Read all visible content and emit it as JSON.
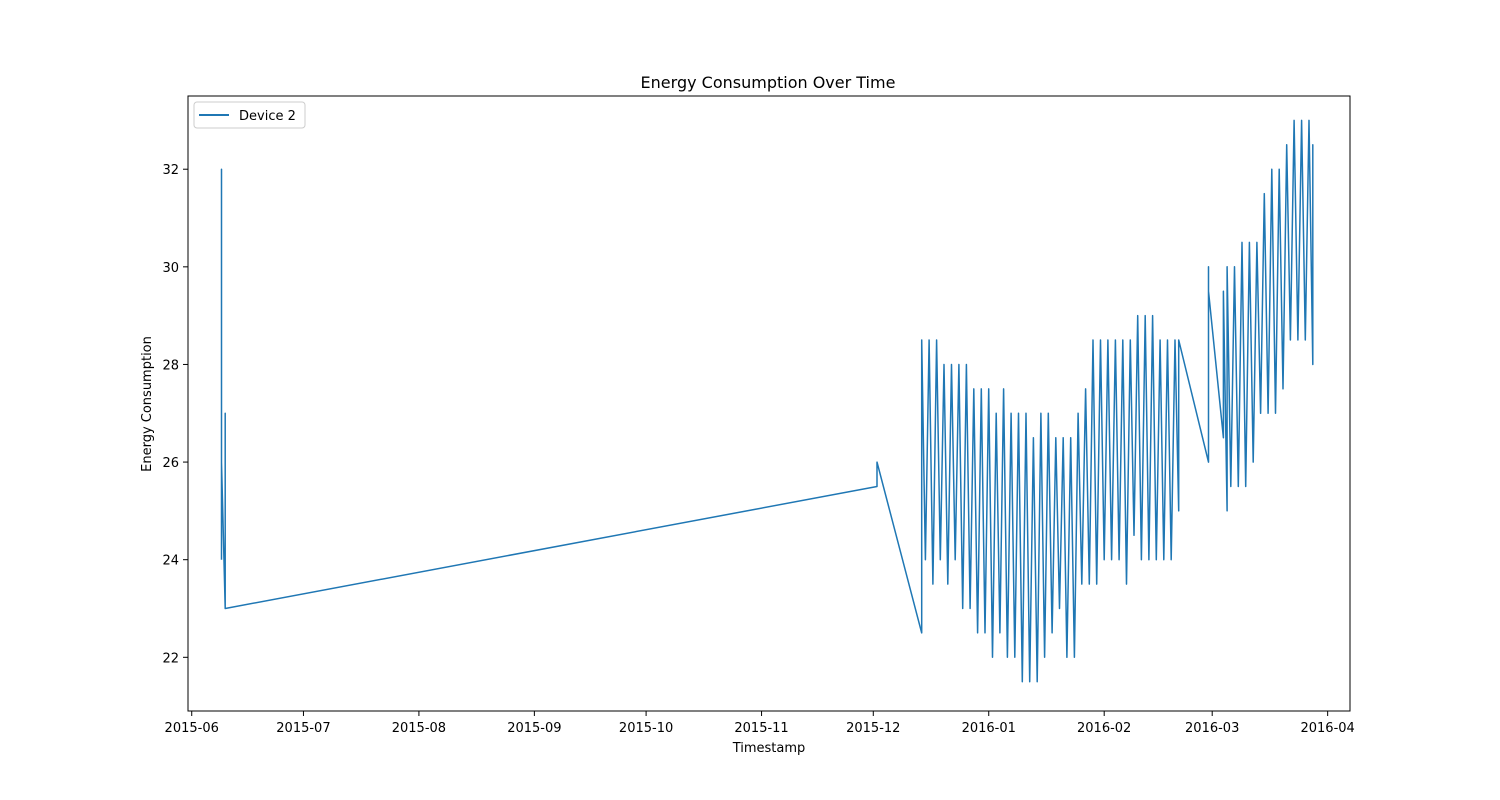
{
  "chart_data": {
    "type": "line",
    "title": "Energy Consumption Over Time",
    "xlabel": "Timestamp",
    "ylabel": "Energy Consumption",
    "xlim": [
      "2015-05-31",
      "2016-04-07"
    ],
    "ylim": [
      20.9,
      33.5
    ],
    "x_ticks": [
      "2015-06",
      "2015-07",
      "2015-08",
      "2015-09",
      "2015-10",
      "2015-11",
      "2015-12",
      "2016-01",
      "2016-02",
      "2016-03",
      "2016-04"
    ],
    "y_ticks": [
      22,
      24,
      26,
      28,
      30,
      32
    ],
    "grid": false,
    "legend_position": "upper left",
    "series": [
      {
        "name": "Device 2",
        "color": "#1f77b4",
        "points": [
          [
            "2015-06-09",
            24.0
          ],
          [
            "2015-06-09",
            31.0
          ],
          [
            "2015-06-09",
            32.0
          ],
          [
            "2015-06-09",
            24.5
          ],
          [
            "2015-06-09",
            26.0
          ],
          [
            "2015-06-10",
            23.0
          ],
          [
            "2015-06-10",
            27.0
          ],
          [
            "2015-06-10",
            23.0
          ],
          [
            "2015-12-02",
            25.5
          ],
          [
            "2015-12-02",
            26.0
          ],
          [
            "2015-12-14",
            22.5
          ],
          [
            "2015-12-14",
            28.5
          ],
          [
            "2015-12-15",
            24.0
          ],
          [
            "2015-12-16",
            28.5
          ],
          [
            "2015-12-17",
            23.5
          ],
          [
            "2015-12-18",
            28.5
          ],
          [
            "2015-12-19",
            24.0
          ],
          [
            "2015-12-20",
            28.0
          ],
          [
            "2015-12-21",
            23.5
          ],
          [
            "2015-12-22",
            28.0
          ],
          [
            "2015-12-23",
            24.0
          ],
          [
            "2015-12-24",
            28.0
          ],
          [
            "2015-12-25",
            23.0
          ],
          [
            "2015-12-26",
            28.0
          ],
          [
            "2015-12-27",
            23.0
          ],
          [
            "2015-12-28",
            27.5
          ],
          [
            "2015-12-29",
            22.5
          ],
          [
            "2015-12-30",
            27.5
          ],
          [
            "2015-12-31",
            22.5
          ],
          [
            "2016-01-01",
            27.5
          ],
          [
            "2016-01-02",
            22.0
          ],
          [
            "2016-01-03",
            27.0
          ],
          [
            "2016-01-04",
            22.5
          ],
          [
            "2016-01-05",
            27.5
          ],
          [
            "2016-01-06",
            22.0
          ],
          [
            "2016-01-07",
            27.0
          ],
          [
            "2016-01-08",
            22.0
          ],
          [
            "2016-01-09",
            27.0
          ],
          [
            "2016-01-10",
            21.5
          ],
          [
            "2016-01-11",
            27.0
          ],
          [
            "2016-01-12",
            21.5
          ],
          [
            "2016-01-13",
            26.5
          ],
          [
            "2016-01-14",
            21.5
          ],
          [
            "2016-01-15",
            27.0
          ],
          [
            "2016-01-16",
            22.0
          ],
          [
            "2016-01-17",
            27.0
          ],
          [
            "2016-01-18",
            22.5
          ],
          [
            "2016-01-19",
            26.5
          ],
          [
            "2016-01-20",
            23.0
          ],
          [
            "2016-01-21",
            26.5
          ],
          [
            "2016-01-22",
            22.0
          ],
          [
            "2016-01-23",
            26.5
          ],
          [
            "2016-01-24",
            22.0
          ],
          [
            "2016-01-25",
            27.0
          ],
          [
            "2016-01-26",
            23.5
          ],
          [
            "2016-01-27",
            27.5
          ],
          [
            "2016-01-28",
            23.5
          ],
          [
            "2016-01-29",
            28.5
          ],
          [
            "2016-01-30",
            23.5
          ],
          [
            "2016-01-31",
            28.5
          ],
          [
            "2016-02-01",
            24.0
          ],
          [
            "2016-02-02",
            28.5
          ],
          [
            "2016-02-03",
            24.0
          ],
          [
            "2016-02-04",
            28.5
          ],
          [
            "2016-02-05",
            24.0
          ],
          [
            "2016-02-06",
            28.5
          ],
          [
            "2016-02-07",
            23.5
          ],
          [
            "2016-02-08",
            28.5
          ],
          [
            "2016-02-09",
            24.5
          ],
          [
            "2016-02-10",
            29.0
          ],
          [
            "2016-02-11",
            24.0
          ],
          [
            "2016-02-12",
            29.0
          ],
          [
            "2016-02-13",
            24.0
          ],
          [
            "2016-02-14",
            29.0
          ],
          [
            "2016-02-15",
            24.0
          ],
          [
            "2016-02-16",
            28.5
          ],
          [
            "2016-02-17",
            24.0
          ],
          [
            "2016-02-18",
            28.5
          ],
          [
            "2016-02-19",
            24.0
          ],
          [
            "2016-02-20",
            28.5
          ],
          [
            "2016-02-21",
            25.0
          ],
          [
            "2016-02-21",
            28.5
          ],
          [
            "2016-02-29",
            26.0
          ],
          [
            "2016-02-29",
            30.0
          ],
          [
            "2016-02-29",
            27.0
          ],
          [
            "2016-02-29",
            29.5
          ],
          [
            "2016-03-04",
            26.5
          ],
          [
            "2016-03-04",
            29.5
          ],
          [
            "2016-03-05",
            25.0
          ],
          [
            "2016-03-05",
            30.0
          ],
          [
            "2016-03-06",
            25.5
          ],
          [
            "2016-03-07",
            30.0
          ],
          [
            "2016-03-08",
            25.5
          ],
          [
            "2016-03-09",
            30.5
          ],
          [
            "2016-03-10",
            25.5
          ],
          [
            "2016-03-11",
            30.5
          ],
          [
            "2016-03-12",
            26.0
          ],
          [
            "2016-03-13",
            30.5
          ],
          [
            "2016-03-14",
            27.0
          ],
          [
            "2016-03-15",
            31.5
          ],
          [
            "2016-03-16",
            27.0
          ],
          [
            "2016-03-17",
            32.0
          ],
          [
            "2016-03-18",
            27.0
          ],
          [
            "2016-03-19",
            32.0
          ],
          [
            "2016-03-20",
            27.5
          ],
          [
            "2016-03-21",
            32.5
          ],
          [
            "2016-03-22",
            28.5
          ],
          [
            "2016-03-23",
            33.0
          ],
          [
            "2016-03-24",
            28.5
          ],
          [
            "2016-03-25",
            33.0
          ],
          [
            "2016-03-26",
            28.5
          ],
          [
            "2016-03-27",
            33.0
          ],
          [
            "2016-03-28",
            28.0
          ],
          [
            "2016-03-28",
            32.5
          ],
          [
            "2016-03-28",
            28.5
          ]
        ]
      }
    ]
  }
}
